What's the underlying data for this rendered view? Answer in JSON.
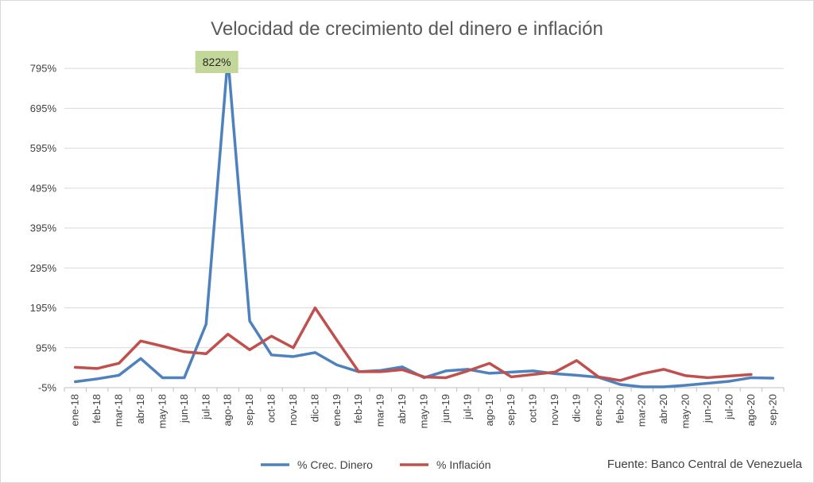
{
  "chart_data": {
    "type": "line",
    "title": "Velocidad de crecimiento del dinero e inflación",
    "xlabel": "",
    "ylabel": "",
    "ylim": [
      -5,
      845
    ],
    "y_ticks": [
      -5,
      95,
      195,
      295,
      395,
      495,
      595,
      695,
      795
    ],
    "y_tick_labels": [
      "-5%",
      "95%",
      "195%",
      "295%",
      "395%",
      "495%",
      "595%",
      "695%",
      "795%"
    ],
    "grid": true,
    "legend_position": "bottom",
    "categories": [
      "ene-18",
      "feb-18",
      "mar-18",
      "abr-18",
      "may-18",
      "jun-18",
      "jul-18",
      "ago-18",
      "sep-18",
      "oct-18",
      "nov-18",
      "dic-18",
      "ene-19",
      "feb-19",
      "mar-19",
      "abr-19",
      "may-19",
      "jun-19",
      "jul-19",
      "ago-19",
      "sep-19",
      "oct-19",
      "nov-19",
      "dic-19",
      "ene-20",
      "feb-20",
      "mar-20",
      "abr-20",
      "may-20",
      "jun-20",
      "jul-20",
      "ago-20",
      "sep-20"
    ],
    "series": [
      {
        "name": "% Crec. Dinero",
        "color": "#4f81bd",
        "values": [
          10,
          17,
          26,
          68,
          20,
          20,
          154,
          822,
          162,
          77,
          73,
          83,
          52,
          35,
          38,
          47,
          20,
          37,
          41,
          31,
          34,
          37,
          30,
          26,
          21,
          3,
          -3,
          -3,
          1,
          6,
          11,
          20,
          19
        ]
      },
      {
        "name": "% Inflación",
        "color": "#c0504d",
        "values": [
          46,
          43,
          56,
          112,
          99,
          85,
          80,
          129,
          90,
          124,
          95,
          195,
          114,
          35,
          35,
          40,
          22,
          20,
          37,
          56,
          22,
          28,
          34,
          63,
          22,
          13,
          30,
          41,
          25,
          20,
          24,
          28,
          null
        ]
      }
    ],
    "annotation": {
      "text": "822%",
      "category": "ago-18",
      "value": 822,
      "background": "#c4d79b"
    },
    "source": "Fuente: Banco Central de Venezuela"
  }
}
